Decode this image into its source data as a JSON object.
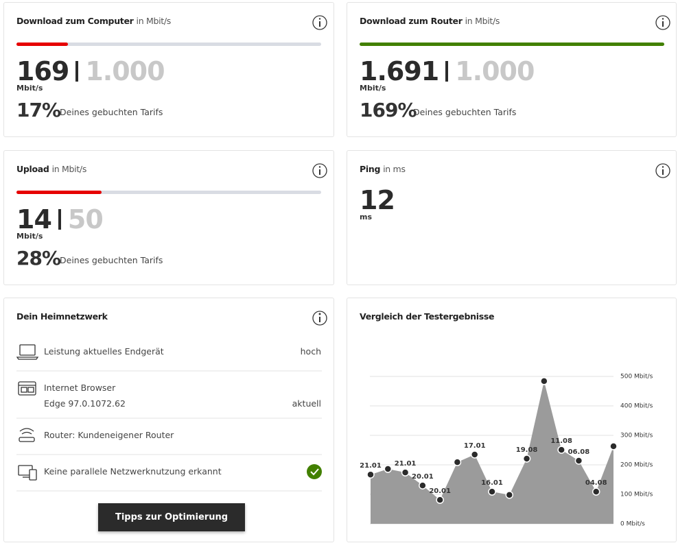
{
  "cards": [
    {
      "title": "Download zum Computer",
      "unit_text": "in Mbit/s",
      "measured": "169",
      "booked": "1.000",
      "unit": "Mbit/s",
      "percent": 17,
      "percent_label": "17%",
      "tariff_text": "Deines gebuchten Tarifs",
      "bar_color": "#e60000"
    },
    {
      "title": "Download zum Router",
      "unit_text": "in Mbit/s",
      "measured": "1.691",
      "booked": "1.000",
      "unit": "Mbit/s",
      "percent": 169,
      "percent_label": "169%",
      "tariff_text": "Deines gebuchten Tarifs",
      "bar_color": "#428000"
    },
    {
      "title": "Upload",
      "unit_text": "in Mbit/s",
      "measured": "14",
      "booked": "50",
      "unit": "Mbit/s",
      "percent": 28,
      "percent_label": "28%",
      "tariff_text": "Deines gebuchten Tarifs",
      "bar_color": "#e60000"
    },
    {
      "title": "Ping",
      "unit_text": "in ms",
      "measured": "12",
      "unit": "ms"
    }
  ],
  "network": {
    "title": "Dein Heimnetzwerk",
    "items": [
      {
        "label": "Leistung aktuelles Endgerät",
        "status": "hoch"
      },
      {
        "label": "Internet Browser",
        "detail": "Edge 97.0.1072.62",
        "status": "aktuell"
      },
      {
        "label": "Router: Kundeneigener Router"
      },
      {
        "label": "Keine parallele Netzwerknutzung erkannt"
      }
    ],
    "button": "Tipps zur Optimierung"
  },
  "chart_data": {
    "type": "area",
    "title": "Vergleich der Testergebnisse",
    "categories": [
      "21.01",
      null,
      "21.01",
      "20.01",
      "20.01",
      null,
      "17.01",
      "16.01",
      null,
      "19.08",
      null,
      "11.08",
      "06.08",
      "04.08",
      null
    ],
    "values": [
      167,
      186,
      174,
      130,
      81,
      209,
      235,
      109,
      98,
      221,
      484,
      251,
      214,
      109,
      263
    ],
    "color": "#9b9b9b",
    "point_color": "#2b2b2b",
    "ylim": [
      0,
      500
    ],
    "yticks": [
      {
        "value": 0,
        "label": "0 Mbit/s"
      },
      {
        "value": 100,
        "label": "100 Mbit/s"
      },
      {
        "value": 200,
        "label": "200 Mbit/s"
      },
      {
        "value": 300,
        "label": "300 Mbit/s"
      },
      {
        "value": 400,
        "label": "400 Mbit/s"
      },
      {
        "value": 500,
        "label": "500 Mbit/s"
      }
    ],
    "grid": true
  }
}
